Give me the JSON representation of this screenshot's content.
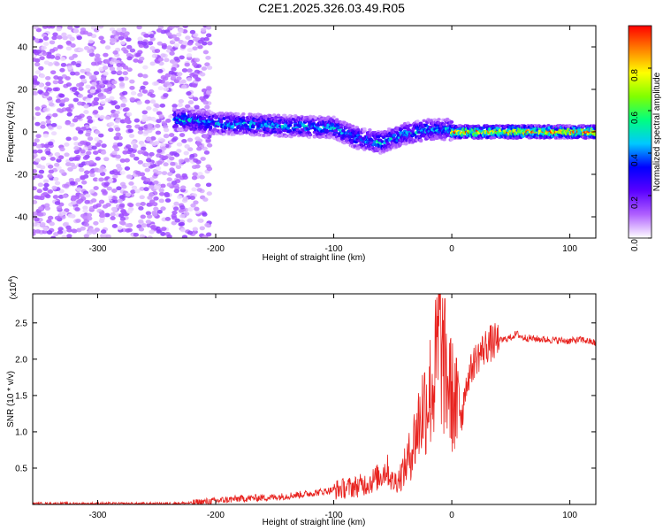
{
  "title": "C2E1.2025.326.03.49.R05",
  "chart_data": [
    {
      "type": "heatmap",
      "xlabel": "Height of straight line (km)",
      "ylabel": "Frequency (Hz)",
      "xlim": [
        -355,
        122
      ],
      "ylim": [
        -50,
        50
      ],
      "xticks": [
        -300,
        -200,
        -100,
        0,
        100
      ],
      "yticks": [
        -40,
        -20,
        0,
        20,
        40
      ],
      "colorbar": {
        "label": "Normalized spectral amplitude",
        "range": [
          0,
          1
        ],
        "ticks": [
          "0.0",
          "0.2",
          "0.4",
          "0.6",
          "0.8"
        ],
        "colormap": [
          "#ffffff",
          "#b060ff",
          "#5a00ff",
          "#0000ff",
          "#00c8ff",
          "#00ff80",
          "#80ff00",
          "#ffff00",
          "#ff8000",
          "#ff0000"
        ]
      },
      "regions": [
        {
          "x_range": [
            -355,
            -215
          ],
          "f_range": [
            -50,
            50
          ],
          "amplitude": 0.1,
          "description": "broadband"
        },
        {
          "x_range": [
            -235,
            0
          ],
          "centre_line": [
            [
              -235,
              6
            ],
            [
              -200,
              4
            ],
            [
              -150,
              3
            ],
            [
              -100,
              2
            ],
            [
              -80,
              -3
            ],
            [
              -60,
              -5
            ],
            [
              -40,
              -1
            ],
            [
              -20,
              1
            ],
            [
              0,
              1
            ]
          ],
          "width_hz": 5,
          "amplitude": 0.4
        },
        {
          "x_range": [
            0,
            122
          ],
          "centre_line": [
            [
              0,
              0
            ],
            [
              122,
              0
            ]
          ],
          "width_hz": 3,
          "amplitude": 0.75
        }
      ]
    },
    {
      "type": "line",
      "xlabel": "Height of straight line (km)",
      "ylabel": "SNR (10 * v/v)",
      "scale_label": "(x10",
      "scale_exp": "4",
      "xlim": [
        -355,
        122
      ],
      "ylim": [
        0,
        2.9
      ],
      "xticks": [
        -300,
        -200,
        -100,
        0,
        100
      ],
      "yticks": [
        0.5,
        1.0,
        1.5,
        2.0,
        2.5
      ],
      "series": [
        {
          "color": "#e8231f",
          "x": [
            -355,
            -300,
            -250,
            -220,
            -200,
            -180,
            -150,
            -120,
            -100,
            -80,
            -70,
            -60,
            -55,
            -50,
            -45,
            -40,
            -35,
            -30,
            -25,
            -20,
            -15,
            -12,
            -10,
            -8,
            -5,
            0,
            5,
            10,
            15,
            20,
            25,
            30,
            40,
            50,
            55,
            60,
            70,
            80,
            90,
            100,
            110,
            122
          ],
          "y": [
            0.01,
            0.01,
            0.01,
            0.02,
            0.05,
            0.08,
            0.1,
            0.15,
            0.2,
            0.25,
            0.3,
            0.4,
            0.5,
            0.3,
            0.35,
            0.5,
            0.7,
            1.0,
            1.3,
            1.5,
            1.7,
            2.1,
            2.4,
            2.0,
            1.8,
            1.5,
            1.3,
            1.5,
            1.8,
            2.0,
            2.1,
            2.2,
            2.25,
            2.3,
            2.35,
            2.3,
            2.28,
            2.27,
            2.26,
            2.25,
            2.27,
            2.22
          ]
        }
      ]
    }
  ]
}
